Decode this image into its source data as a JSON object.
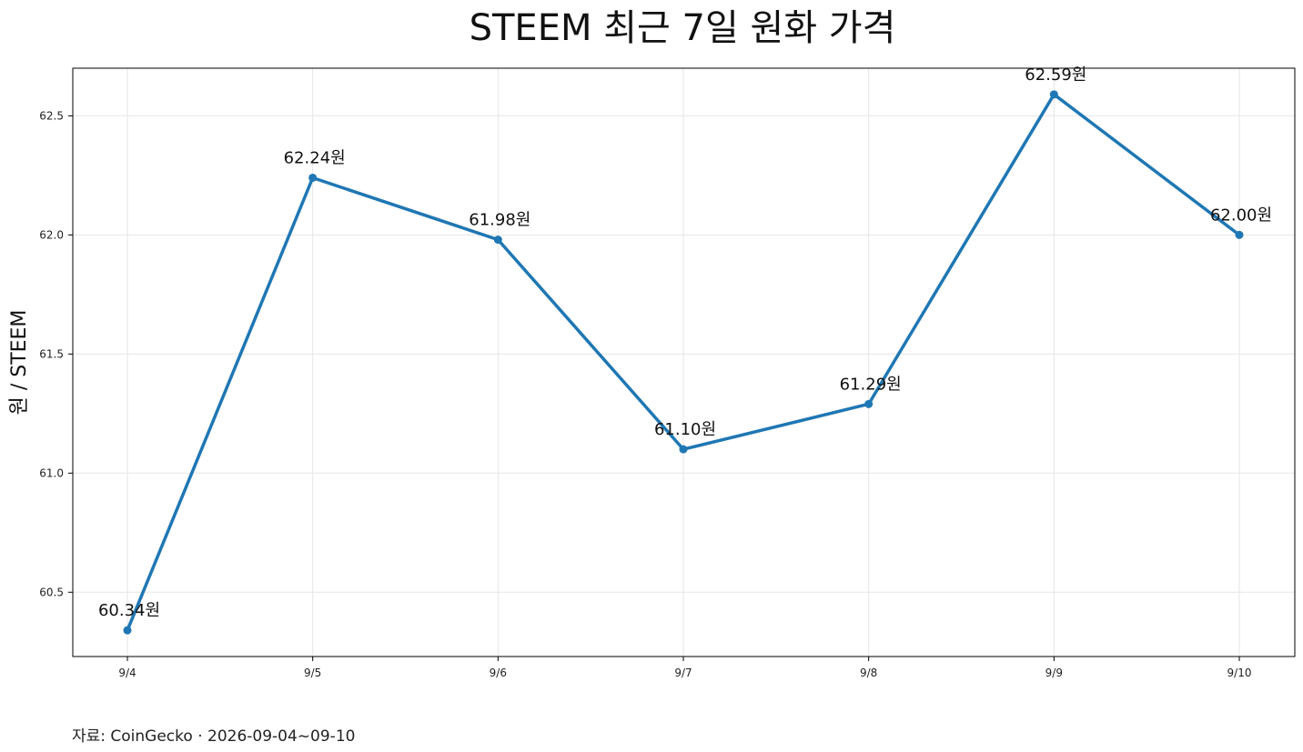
{
  "chart_data": {
    "type": "line",
    "title": "STEEM 최근 7일 원화 가격",
    "xlabel": "",
    "ylabel": "원 / STEEM",
    "categories": [
      "9/4",
      "9/5",
      "9/6",
      "9/7",
      "9/8",
      "9/9",
      "9/10"
    ],
    "series": [
      {
        "values": [
          60.34,
          62.24,
          61.98,
          61.1,
          61.29,
          62.59,
          62.0
        ],
        "data_labels": [
          "60.34원",
          "62.24원",
          "61.98원",
          "61.10원",
          "61.29원",
          "62.59원",
          "62.00원"
        ],
        "color": "#1f77b4"
      }
    ],
    "ylim": [
      60.23,
      62.7
    ],
    "yticks": [
      60.5,
      61.0,
      61.5,
      62.0,
      62.5
    ],
    "ytick_labels": [
      "60.5",
      "61.0",
      "61.5",
      "62.0",
      "62.5"
    ],
    "grid": true,
    "legend": "none"
  },
  "source_note": "자료: CoinGecko · 2026-09-04~09-10"
}
